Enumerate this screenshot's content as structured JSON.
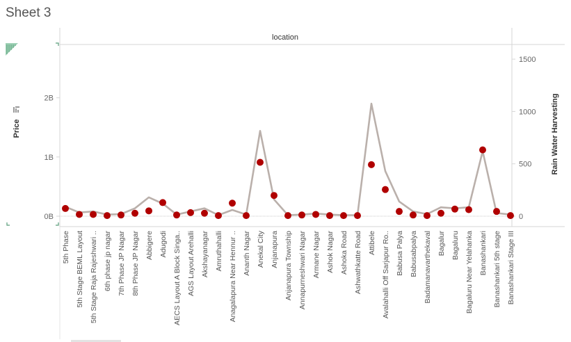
{
  "sheet_title": "Sheet 3",
  "colors": {
    "marker": "#b00000",
    "line": "#bab0ab",
    "axis": "#d6d6d6",
    "accent": "#5a9e7b"
  },
  "chart_data": {
    "type": "line",
    "column_header": "location",
    "categories": [
      "5th Phase",
      "5th Stage BEML Layout",
      "5th Stage Raja Rajeshwari ..",
      "6th phase jp nagar",
      "7th Phase JP Nagar",
      "8th Phase JP Nagar",
      "Abbigere",
      "Adugodi",
      "AECS Layout A Block Singa..",
      "AGS Layout Arehalli",
      "Akshayanagar",
      "Amruthahalli",
      "Anagalapura Near Hennur ..",
      "Ananth Nagar",
      "Anekal City",
      "Anjanapura",
      "Anjanapura Township",
      "Annapurneshwari Nagar",
      "Armane Nagar",
      "Ashok Nagar",
      "Ashoka Road",
      "Ashwathkatte Road",
      "Attibele",
      "Avalahalli Off Sarjapur Ro..",
      "Babusa Palya",
      "Babusabpalya",
      "Badamanavarthekaval",
      "Bagalur",
      "Bagaluru",
      "Bagaluru Near Yelahanka",
      "Banashankari",
      "Banashankari 5th stage",
      "Banashankari Stage III"
    ],
    "series": [
      {
        "name": "Price",
        "axis": "left",
        "mark": "circle",
        "values": [
          0.13,
          0.03,
          0.03,
          0.01,
          0.02,
          0.05,
          0.09,
          0.23,
          0.02,
          0.06,
          0.05,
          0.01,
          0.22,
          0.01,
          0.91,
          0.35,
          0.01,
          0.02,
          0.03,
          0.01,
          0.01,
          0.01,
          0.87,
          0.45,
          0.08,
          0.02,
          0.01,
          0.05,
          0.12,
          0.11,
          1.12,
          0.08,
          0.01
        ]
      },
      {
        "name": "Rain Water Harvesting",
        "axis": "right",
        "mark": "line",
        "values": [
          90,
          35,
          45,
          15,
          20,
          75,
          180,
          120,
          15,
          45,
          75,
          10,
          60,
          15,
          815,
          160,
          10,
          15,
          25,
          15,
          10,
          10,
          1075,
          430,
          140,
          45,
          20,
          85,
          75,
          85,
          620,
          30,
          15
        ]
      }
    ],
    "left_axis": {
      "title": "Price",
      "range": [
        0,
        2.9
      ],
      "ticks": [
        0,
        1,
        2
      ],
      "tick_labels": [
        "0B",
        "1B",
        "2B"
      ]
    },
    "right_axis": {
      "title": "Rain Water Harvesting",
      "range": [
        0,
        1640
      ],
      "ticks": [
        0,
        500,
        1000,
        1500
      ],
      "tick_labels": [
        "0",
        "500",
        "1000",
        "1500"
      ]
    },
    "zero_line": true,
    "grid": false
  }
}
